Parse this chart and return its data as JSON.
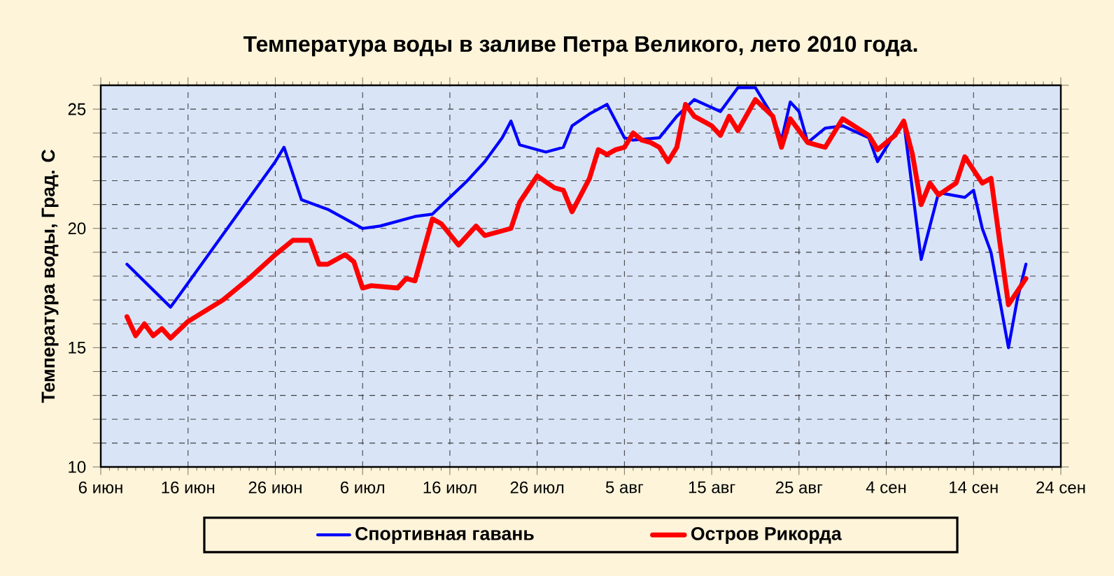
{
  "chart_data": {
    "type": "line",
    "title": "Температура воды в заливе Петра Великого,  лето 2010 года.",
    "ylabel": "Температура воды, Град. C",
    "xlim": [
      "2010-06-06",
      "2010-09-24"
    ],
    "xticks": [
      {
        "value": "2010-06-06",
        "label": "6 июн"
      },
      {
        "value": "2010-06-16",
        "label": "16 июн"
      },
      {
        "value": "2010-06-26",
        "label": "26 июн"
      },
      {
        "value": "2010-07-06",
        "label": "6 июл"
      },
      {
        "value": "2010-07-16",
        "label": "16 июл"
      },
      {
        "value": "2010-07-26",
        "label": "26 июл"
      },
      {
        "value": "2010-08-05",
        "label": "5 авг"
      },
      {
        "value": "2010-08-15",
        "label": "15 авг"
      },
      {
        "value": "2010-08-25",
        "label": "25 авг"
      },
      {
        "value": "2010-09-04",
        "label": "4 сен"
      },
      {
        "value": "2010-09-14",
        "label": "14 сен"
      },
      {
        "value": "2010-09-24",
        "label": "24 сен"
      }
    ],
    "ylim": [
      10,
      26
    ],
    "yticks": [
      10,
      {
        "value": 11,
        "label": null
      },
      {
        "value": 12,
        "label": null
      },
      {
        "value": 13,
        "label": null
      },
      {
        "value": 14,
        "label": null
      },
      15,
      {
        "value": 16,
        "label": null
      },
      {
        "value": 17,
        "label": null
      },
      {
        "value": 18,
        "label": null
      },
      {
        "value": 19,
        "label": null
      },
      20,
      {
        "value": 21,
        "label": null
      },
      {
        "value": 22,
        "label": null
      },
      {
        "value": 23,
        "label": null
      },
      {
        "value": 24,
        "label": null
      },
      25,
      {
        "value": 26,
        "label": null
      }
    ],
    "grid": true,
    "legend": "bottom",
    "marker": "none",
    "line_style": "solid",
    "series": [
      {
        "name": "Спортивная гавань",
        "color": "#0000ff",
        "x": [
          "2010-06-09",
          "2010-06-14",
          "2010-06-15",
          "2010-06-26",
          "2010-06-27",
          "2010-06-29",
          "2010-07-02",
          "2010-07-06",
          "2010-07-08",
          "2010-07-12",
          "2010-07-14",
          "2010-07-16",
          "2010-07-18",
          "2010-07-20",
          "2010-07-22",
          "2010-07-23",
          "2010-07-24",
          "2010-07-27",
          "2010-07-29",
          "2010-07-30",
          "2010-08-01",
          "2010-08-03",
          "2010-08-05",
          "2010-08-06",
          "2010-08-09",
          "2010-08-11",
          "2010-08-13",
          "2010-08-16",
          "2010-08-18",
          "2010-08-20",
          "2010-08-22",
          "2010-08-23",
          "2010-08-24",
          "2010-08-25",
          "2010-08-26",
          "2010-08-28",
          "2010-08-30",
          "2010-09-02",
          "2010-09-03",
          "2010-09-05",
          "2010-09-06",
          "2010-09-08",
          "2010-09-10",
          "2010-09-13",
          "2010-09-14",
          "2010-09-15",
          "2010-09-16",
          "2010-09-18",
          "2010-09-19",
          "2010-09-20"
        ],
        "values": [
          18.5,
          16.7,
          17.2,
          22.8,
          23.4,
          21.2,
          20.8,
          20.0,
          20.1,
          20.5,
          20.6,
          21.3,
          22.0,
          22.8,
          23.8,
          24.5,
          23.5,
          23.2,
          23.4,
          24.3,
          24.8,
          25.2,
          23.8,
          23.7,
          23.8,
          24.7,
          25.4,
          24.9,
          25.9,
          25.9,
          24.7,
          23.7,
          25.3,
          24.9,
          23.6,
          24.2,
          24.3,
          23.8,
          22.8,
          24.0,
          24.5,
          18.7,
          21.5,
          21.3,
          21.6,
          20.0,
          19.0,
          15.0,
          17.0,
          18.5
        ]
      },
      {
        "name": "Остров Рикорда",
        "color": "#ff0000",
        "x": [
          "2010-06-09",
          "2010-06-10",
          "2010-06-11",
          "2010-06-12",
          "2010-06-13",
          "2010-06-14",
          "2010-06-16",
          "2010-06-20",
          "2010-06-23",
          "2010-06-26",
          "2010-06-28",
          "2010-06-30",
          "2010-07-01",
          "2010-07-02",
          "2010-07-04",
          "2010-07-05",
          "2010-07-06",
          "2010-07-07",
          "2010-07-10",
          "2010-07-11",
          "2010-07-12",
          "2010-07-14",
          "2010-07-15",
          "2010-07-17",
          "2010-07-19",
          "2010-07-20",
          "2010-07-23",
          "2010-07-24",
          "2010-07-26",
          "2010-07-28",
          "2010-07-29",
          "2010-07-30",
          "2010-08-01",
          "2010-08-02",
          "2010-08-03",
          "2010-08-04",
          "2010-08-05",
          "2010-08-06",
          "2010-08-07",
          "2010-08-08",
          "2010-08-09",
          "2010-08-10",
          "2010-08-11",
          "2010-08-12",
          "2010-08-13",
          "2010-08-15",
          "2010-08-16",
          "2010-08-17",
          "2010-08-18",
          "2010-08-20",
          "2010-08-22",
          "2010-08-23",
          "2010-08-24",
          "2010-08-26",
          "2010-08-27",
          "2010-08-28",
          "2010-08-30",
          "2010-09-02",
          "2010-09-03",
          "2010-09-05",
          "2010-09-06",
          "2010-09-07",
          "2010-09-08",
          "2010-09-09",
          "2010-09-10",
          "2010-09-12",
          "2010-09-13",
          "2010-09-15",
          "2010-09-16",
          "2010-09-18",
          "2010-09-20"
        ],
        "values": [
          16.3,
          15.5,
          16.0,
          15.5,
          15.8,
          15.4,
          16.1,
          17.0,
          17.9,
          18.9,
          19.5,
          19.5,
          18.5,
          18.5,
          18.9,
          18.6,
          17.5,
          17.6,
          17.5,
          17.9,
          17.8,
          20.4,
          20.2,
          19.3,
          20.1,
          19.7,
          20.0,
          21.1,
          22.2,
          21.7,
          21.6,
          20.7,
          22.1,
          23.3,
          23.1,
          23.3,
          23.4,
          24.0,
          23.7,
          23.6,
          23.4,
          22.8,
          23.4,
          25.2,
          24.7,
          24.3,
          23.9,
          24.7,
          24.1,
          25.4,
          24.7,
          23.4,
          24.6,
          23.6,
          23.5,
          23.4,
          24.6,
          23.9,
          23.3,
          23.9,
          24.5,
          23.1,
          21.0,
          21.9,
          21.4,
          21.9,
          23.0,
          21.9,
          22.1,
          16.8,
          17.9
        ]
      }
    ]
  }
}
